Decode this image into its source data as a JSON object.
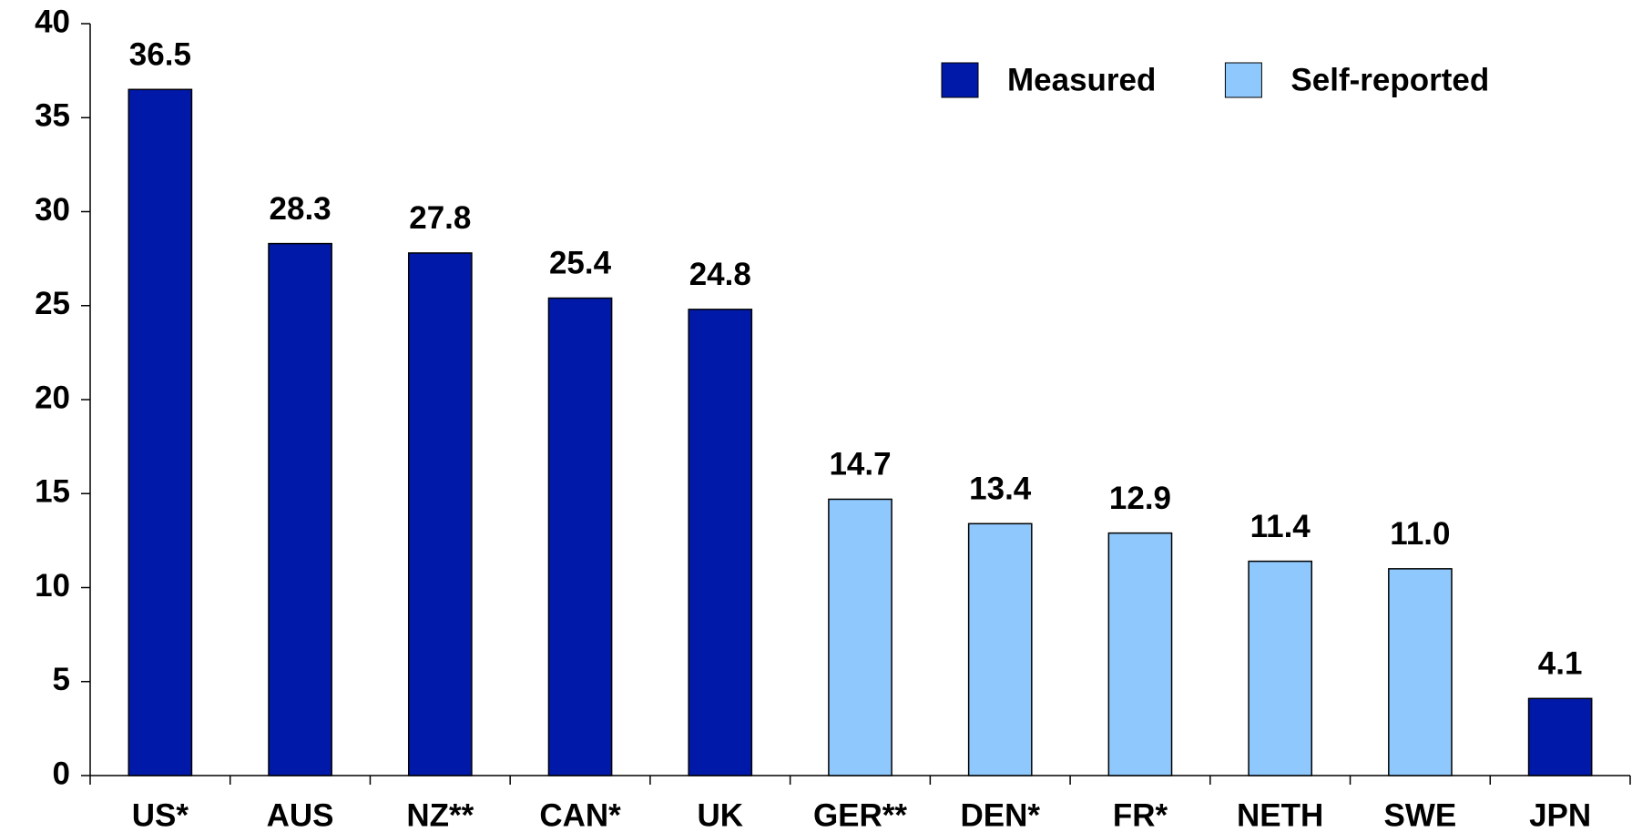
{
  "chart_data": {
    "type": "bar",
    "categories": [
      "US*",
      "AUS",
      "NZ**",
      "CAN*",
      "UK",
      "GER**",
      "DEN*",
      "FR*",
      "NETH",
      "SWE",
      "JPN"
    ],
    "series": [
      {
        "name": "Measured",
        "color": "#0019a8",
        "values": [
          36.5,
          28.3,
          27.8,
          25.4,
          24.8,
          null,
          null,
          null,
          null,
          null,
          4.1
        ],
        "value_labels": [
          "36.5",
          "28.3",
          "27.8",
          "25.4",
          "24.8",
          null,
          null,
          null,
          null,
          null,
          "4.1"
        ]
      },
      {
        "name": "Self-reported",
        "color": "#8fc8fc",
        "values": [
          null,
          null,
          null,
          null,
          null,
          14.7,
          13.4,
          12.9,
          11.4,
          11,
          null
        ],
        "value_labels": [
          null,
          null,
          null,
          null,
          null,
          "14.7",
          "13.4",
          "12.9",
          "11.4",
          "11.0",
          null
        ]
      }
    ],
    "ylim": [
      0,
      40
    ],
    "yticks": [
      0,
      5,
      10,
      15,
      20,
      25,
      30,
      35,
      40
    ],
    "legend": "top-right"
  }
}
